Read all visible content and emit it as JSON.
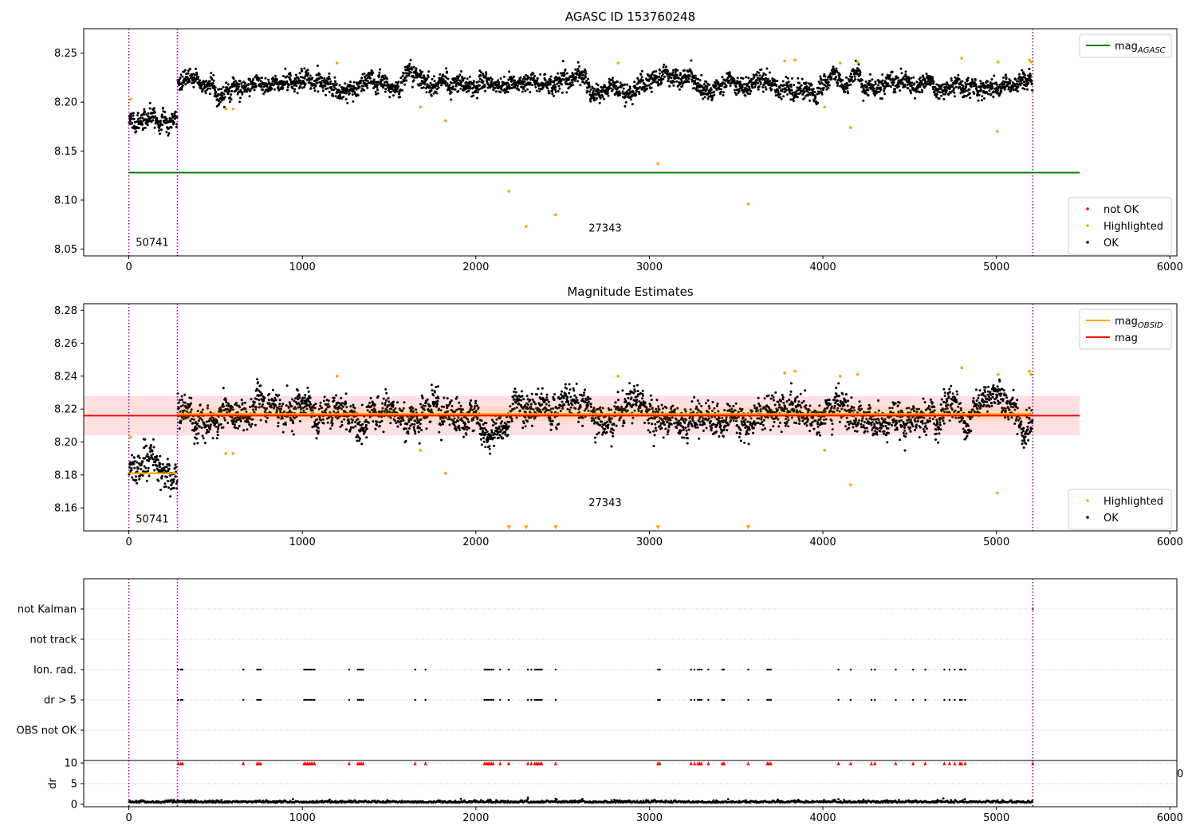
{
  "chart_data": [
    {
      "type": "scatter",
      "title": "AGASC ID 153760248",
      "xlim": [
        -260,
        6040
      ],
      "ylim": [
        8.043,
        8.275
      ],
      "xticks": [
        "0",
        "1000",
        "2000",
        "3000",
        "4000",
        "5000",
        "6000"
      ],
      "yticks": [
        "8.05",
        "8.10",
        "8.15",
        "8.20",
        "8.25"
      ],
      "grid": false,
      "legends": [
        {
          "placement": "top-right",
          "entries": [
            "mag$_{AGASC}$"
          ]
        },
        {
          "placement": "bottom-right",
          "entries": [
            "not OK",
            "Highlighted",
            "OK"
          ]
        }
      ],
      "lines": [
        {
          "name": "mag$_{AGASC}$",
          "color": "#008000",
          "y": 8.128,
          "x": [
            0,
            5480
          ]
        }
      ],
      "vlines": [
        0,
        280,
        5210
      ],
      "annotations": [
        {
          "text": "50741",
          "x": 40,
          "y": 8.053
        },
        {
          "text": "27343",
          "x": 2650,
          "y": 8.068
        }
      ],
      "segments": [
        {
          "x": [
            0,
            280
          ],
          "mean": 8.181,
          "std": 0.008
        },
        {
          "x": [
            280,
            5210
          ],
          "mean": 8.218,
          "std": 0.008
        }
      ],
      "highlighted": [
        [
          10,
          8.203
        ],
        [
          560,
          8.193
        ],
        [
          600,
          8.193
        ],
        [
          1200,
          8.24
        ],
        [
          1680,
          8.195
        ],
        [
          1825,
          8.181
        ],
        [
          2190,
          8.109
        ],
        [
          2290,
          8.073
        ],
        [
          2460,
          8.085
        ],
        [
          2820,
          8.24
        ],
        [
          3050,
          8.137
        ],
        [
          3570,
          8.096
        ],
        [
          3780,
          8.242
        ],
        [
          3840,
          8.243
        ],
        [
          4010,
          8.195
        ],
        [
          4100,
          8.24
        ],
        [
          4160,
          8.174
        ],
        [
          4200,
          8.241
        ],
        [
          4800,
          8.245
        ],
        [
          5005,
          8.17
        ],
        [
          5010,
          8.241
        ],
        [
          5190,
          8.243
        ],
        [
          5200,
          8.241
        ]
      ],
      "series": [
        {
          "name": "not OK",
          "color": "#ff0000"
        },
        {
          "name": "Highlighted",
          "color": "#ffa500"
        },
        {
          "name": "OK",
          "color": "#000000"
        }
      ]
    },
    {
      "type": "scatter",
      "title": "Magnitude Estimates",
      "xlim": [
        -260,
        6040
      ],
      "ylim": [
        8.146,
        8.284
      ],
      "xticks": [
        "0",
        "1000",
        "2000",
        "3000",
        "4000",
        "5000",
        "6000"
      ],
      "yticks": [
        "8.16",
        "8.18",
        "8.20",
        "8.22",
        "8.24",
        "8.26",
        "8.28"
      ],
      "grid": false,
      "legends": [
        {
          "placement": "top-right",
          "entries": [
            "mag$_{OBSID}$",
            "mag"
          ]
        },
        {
          "placement": "bottom-right",
          "entries": [
            "Highlighted",
            "OK"
          ]
        }
      ],
      "lines": [
        {
          "name": "mag$_{OBSID}$",
          "color": "#ffa500",
          "segments": [
            {
              "x": [
                0,
                280
              ],
              "y": 8.181
            },
            {
              "x": [
                280,
                5210
              ],
              "y": 8.217
            }
          ]
        },
        {
          "name": "mag",
          "color": "#ff0000",
          "y": 8.216,
          "x": [
            -260,
            5480
          ],
          "band": [
            8.204,
            8.228
          ]
        }
      ],
      "vlines": [
        0,
        280,
        5210
      ],
      "annotations": [
        {
          "text": "50741",
          "x": 40,
          "y": 8.151
        },
        {
          "text": "27343",
          "x": 2650,
          "y": 8.161
        }
      ],
      "offscale_markers": [
        2190,
        2290,
        2460,
        3050,
        3570
      ],
      "segments": [
        {
          "x": [
            0,
            280
          ],
          "mean": 8.181,
          "std": 0.008
        },
        {
          "x": [
            280,
            5210
          ],
          "mean": 8.217,
          "std": 0.008
        }
      ],
      "highlighted": [
        [
          10,
          8.203
        ],
        [
          560,
          8.193
        ],
        [
          600,
          8.193
        ],
        [
          1200,
          8.24
        ],
        [
          1680,
          8.195
        ],
        [
          1825,
          8.181
        ],
        [
          2820,
          8.24
        ],
        [
          3780,
          8.242
        ],
        [
          3840,
          8.243
        ],
        [
          4010,
          8.195
        ],
        [
          4100,
          8.24
        ],
        [
          4160,
          8.174
        ],
        [
          4200,
          8.241
        ],
        [
          4800,
          8.245
        ],
        [
          5005,
          8.169
        ],
        [
          5010,
          8.241
        ],
        [
          5190,
          8.243
        ],
        [
          5200,
          8.241
        ]
      ],
      "series": [
        {
          "name": "Highlighted",
          "color": "#ffa500"
        },
        {
          "name": "OK",
          "color": "#000000"
        }
      ]
    },
    {
      "type": "scatter",
      "xlim": [
        -260,
        6040
      ],
      "categories": [
        "not Kalman",
        "not track",
        "Ion. rad.",
        "dr > 5",
        "OBS not OK"
      ],
      "grid": true,
      "vlines": [
        0,
        280,
        5210
      ],
      "flag_x": [
        285,
        300,
        310,
        660,
        740,
        750,
        760,
        1010,
        1020,
        1030,
        1040,
        1050,
        1060,
        1070,
        1270,
        1320,
        1330,
        1340,
        1350,
        1650,
        1710,
        2050,
        2060,
        2070,
        2080,
        2090,
        2100,
        2140,
        2190,
        2300,
        2320,
        2340,
        2350,
        2360,
        2370,
        2380,
        2460,
        3050,
        3060,
        3240,
        3260,
        3280,
        3290,
        3300,
        3340,
        3420,
        3430,
        3570,
        3680,
        3690,
        3700,
        4090,
        4160,
        4280,
        4300,
        4420,
        4520,
        4590,
        4700,
        4730,
        4760,
        4790,
        4800,
        4820
      ],
      "not_kalman_x": [
        5210
      ]
    },
    {
      "type": "scatter",
      "ylabel": "dr",
      "xlim": [
        -260,
        6040
      ],
      "ylim": [
        -0.6,
        10.6
      ],
      "xticks": [
        "0",
        "1000",
        "2000",
        "3000",
        "4000",
        "5000",
        "6000"
      ],
      "yticks": [
        "0",
        "5",
        "10"
      ],
      "partial_tick": "0",
      "grid": true,
      "vlines": [
        0,
        280,
        5210
      ],
      "dr_level": 0.4,
      "dr_spread": 0.25,
      "spikes": [
        [
          2300,
          1.6
        ],
        [
          2460,
          1.3
        ],
        [
          3740,
          1.1
        ],
        [
          4090,
          1.2
        ]
      ],
      "clipped_x": [
        285,
        300,
        310,
        660,
        740,
        750,
        760,
        1010,
        1020,
        1030,
        1040,
        1050,
        1060,
        1070,
        1270,
        1320,
        1330,
        1340,
        1350,
        1650,
        1710,
        2050,
        2060,
        2070,
        2080,
        2090,
        2100,
        2140,
        2190,
        2300,
        2320,
        2340,
        2350,
        2360,
        2370,
        2380,
        2460,
        3050,
        3060,
        3240,
        3260,
        3280,
        3290,
        3300,
        3340,
        3420,
        3430,
        3570,
        3680,
        3690,
        3700,
        4090,
        4160,
        4280,
        4300,
        4420,
        4520,
        4590,
        4700,
        4730,
        4760,
        4790,
        4800,
        4820,
        5210
      ]
    }
  ]
}
